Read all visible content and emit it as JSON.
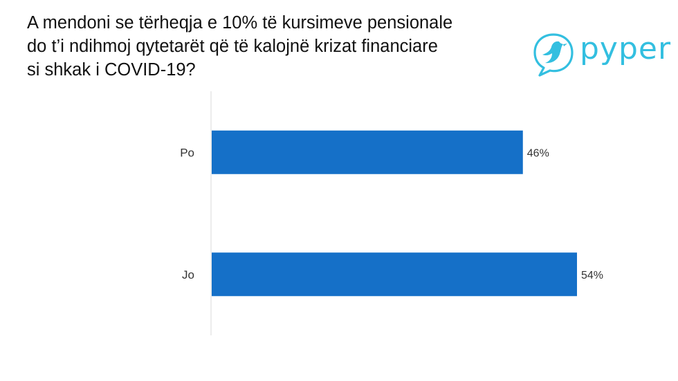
{
  "title": {
    "line1": "A mendoni se tërheqja e 10% të kursimeve pensionale",
    "line2": "do t’i ndihmoj qytetarët që të kalojnë krizat financiare",
    "line3": "si shkak i COVID-19?"
  },
  "logo": {
    "text": "pyper",
    "icon": "bird-in-speech-bubble-icon",
    "color": "#33bfe0"
  },
  "chart_data": {
    "type": "bar",
    "orientation": "horizontal",
    "categories": [
      "Po",
      "Jo"
    ],
    "values": [
      46,
      54
    ],
    "value_labels": [
      "46%",
      "54%"
    ],
    "xlim": [
      0,
      54
    ],
    "bar_color": "#1570c8",
    "grid": false,
    "legend": "none"
  }
}
